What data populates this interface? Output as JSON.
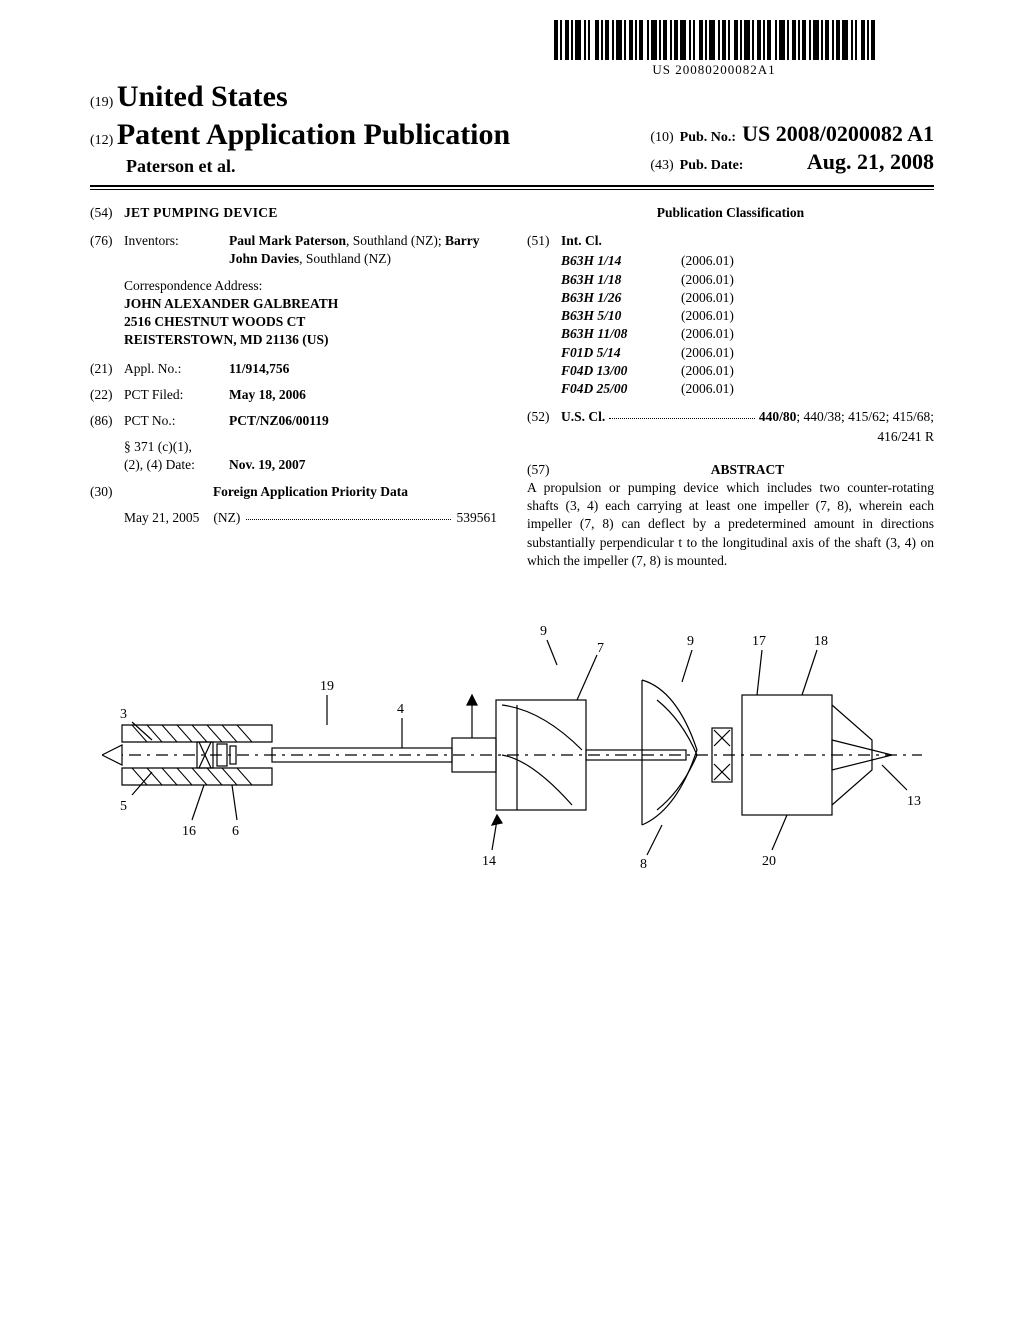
{
  "barcode_text": "US 20080200082A1",
  "masthead": {
    "code19": "(19)",
    "country": "United States",
    "code12": "(12)",
    "pub_type": "Patent Application Publication",
    "authors": "Paterson et al.",
    "code10": "(10)",
    "pubno_label": "Pub. No.:",
    "pubno": "US 2008/0200082 A1",
    "code43": "(43)",
    "pubdate_label": "Pub. Date:",
    "pubdate": "Aug. 21, 2008"
  },
  "left": {
    "code54": "(54)",
    "title": "JET PUMPING DEVICE",
    "code76": "(76)",
    "inventors_label": "Inventors:",
    "inventors_html": "Paul Mark Paterson, Southland (NZ); Barry John Davies, Southland (NZ)",
    "inv1_name": "Paul Mark Paterson",
    "inv1_loc": ", Southland (NZ); ",
    "inv2_name": "Barry John Davies",
    "inv2_loc": ", Southland (NZ)",
    "corr_label": "Correspondence Address:",
    "corr1": "JOHN ALEXANDER GALBREATH",
    "corr2": "2516 CHESTNUT WOODS CT",
    "corr3": "REISTERSTOWN, MD 21136 (US)",
    "code21": "(21)",
    "applno_label": "Appl. No.:",
    "applno": "11/914,756",
    "code22": "(22)",
    "pctfiled_label": "PCT Filed:",
    "pctfiled": "May 18, 2006",
    "code86": "(86)",
    "pctno_label": "PCT No.:",
    "pctno": "PCT/NZ06/00119",
    "s371_label1": "§ 371 (c)(1),",
    "s371_label2": "(2), (4) Date:",
    "s371_date": "Nov. 19, 2007",
    "code30": "(30)",
    "priority_hdr": "Foreign Application Priority Data",
    "priority_date": "May 21, 2005",
    "priority_cc": "(NZ)",
    "priority_no": "539561"
  },
  "right": {
    "pubclass_hdr": "Publication Classification",
    "code51": "(51)",
    "intcl_label": "Int. Cl.",
    "intcl": [
      {
        "c": "B63H 1/14",
        "v": "(2006.01)"
      },
      {
        "c": "B63H 1/18",
        "v": "(2006.01)"
      },
      {
        "c": "B63H 1/26",
        "v": "(2006.01)"
      },
      {
        "c": "B63H 5/10",
        "v": "(2006.01)"
      },
      {
        "c": "B63H 11/08",
        "v": "(2006.01)"
      },
      {
        "c": "F01D 5/14",
        "v": "(2006.01)"
      },
      {
        "c": "F04D 13/00",
        "v": "(2006.01)"
      },
      {
        "c": "F04D 25/00",
        "v": "(2006.01)"
      }
    ],
    "code52": "(52)",
    "uscl_label": "U.S. Cl.",
    "uscl_main": "440/80",
    "uscl_rest": "; 440/38; 415/62; 415/68;",
    "uscl_cont": "416/241 R",
    "code57": "(57)",
    "abstract_hdr": "ABSTRACT",
    "abstract": "A propulsion or pumping device which includes two counter-rotating shafts (3, 4) each carrying at least one impeller (7, 8), wherein each impeller (7, 8) can deflect by a predetermined amount in directions substantially perpendicular t to the longitudinal axis of the shaft (3, 4) on which the impeller (7, 8) is mounted."
  },
  "figure_labels": [
    "3",
    "5",
    "16",
    "6",
    "19",
    "4",
    "14",
    "9",
    "7",
    "8",
    "9",
    "17",
    "18",
    "20",
    "13"
  ]
}
